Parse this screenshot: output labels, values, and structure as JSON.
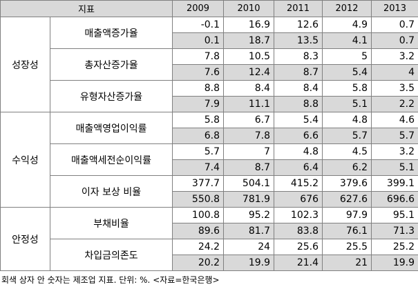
{
  "table": {
    "header": {
      "label": "지표",
      "years": [
        "2009",
        "2010",
        "2011",
        "2012",
        "2013"
      ]
    },
    "groups": [
      {
        "category": "성장성",
        "indicators": [
          {
            "name": "매출액증가율",
            "rows": [
              [
                "-0.1",
                "16.9",
                "12.6",
                "4.9",
                "0.7"
              ],
              [
                "0.1",
                "18.7",
                "13.5",
                "4.1",
                "0.7"
              ]
            ]
          },
          {
            "name": "총자산증가율",
            "rows": [
              [
                "7.8",
                "10.5",
                "8.3",
                "5",
                "3.2"
              ],
              [
                "7.6",
                "12.4",
                "8.7",
                "5.4",
                "4"
              ]
            ]
          },
          {
            "name": "유형자산증가율",
            "rows": [
              [
                "8.8",
                "8.4",
                "8.4",
                "5.8",
                "3.5"
              ],
              [
                "7.9",
                "11.1",
                "8.8",
                "5.1",
                "2.2"
              ]
            ]
          }
        ]
      },
      {
        "category": "수익성",
        "indicators": [
          {
            "name": "매출액영업이익률",
            "rows": [
              [
                "5.8",
                "6.7",
                "5.4",
                "4.8",
                "4.6"
              ],
              [
                "6.8",
                "7.8",
                "6.6",
                "5.7",
                "5.7"
              ]
            ]
          },
          {
            "name": "매출액세전순이익률",
            "rows": [
              [
                "5.7",
                "7",
                "4.8",
                "4.5",
                "3.2"
              ],
              [
                "7.4",
                "8.7",
                "6.4",
                "6.2",
                "5.1"
              ]
            ]
          },
          {
            "name": "이자 보상 비율",
            "rows": [
              [
                "377.7",
                "504.1",
                "415.2",
                "379.6",
                "399.1"
              ],
              [
                "550.8",
                "781.9",
                "676",
                "627.6",
                "696.6"
              ]
            ]
          }
        ]
      },
      {
        "category": "안정성",
        "indicators": [
          {
            "name": "부채비율",
            "rows": [
              [
                "100.8",
                "95.2",
                "102.3",
                "97.9",
                "95.1"
              ],
              [
                "89.6",
                "81.7",
                "83.8",
                "76.1",
                "71.3"
              ]
            ]
          },
          {
            "name": "차입금의존도",
            "rows": [
              [
                "24.2",
                "24",
                "25.6",
                "25.5",
                "25.2"
              ],
              [
                "20.2",
                "19.9",
                "21.4",
                "21",
                "19.9"
              ]
            ]
          }
        ]
      }
    ]
  },
  "caption": "회색 상자 안 숫자는 제조업 지표. 단위: %. <자료=한국은행>"
}
